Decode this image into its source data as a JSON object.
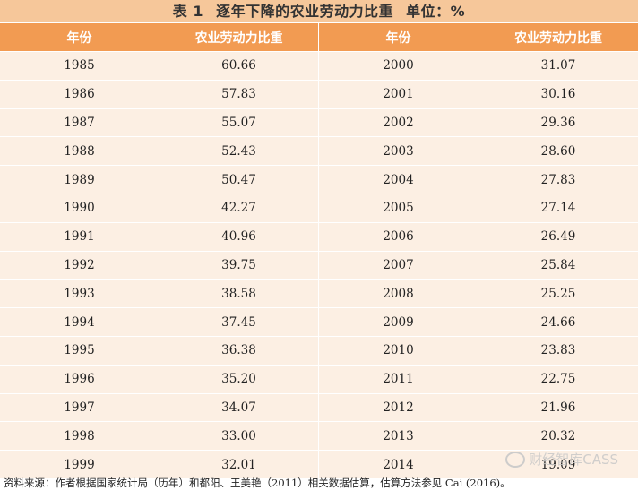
{
  "title": {
    "label": "表 1",
    "text": "逐年下降的农业劳动力比重",
    "unit": "单位：%"
  },
  "headers": [
    "年份",
    "农业劳动力比重",
    "年份",
    "农业劳动力比重"
  ],
  "rows": [
    [
      "1985",
      "60.66",
      "2000",
      "31.07"
    ],
    [
      "1986",
      "57.83",
      "2001",
      "30.16"
    ],
    [
      "1987",
      "55.07",
      "2002",
      "29.36"
    ],
    [
      "1988",
      "52.43",
      "2003",
      "28.60"
    ],
    [
      "1989",
      "50.47",
      "2004",
      "27.83"
    ],
    [
      "1990",
      "42.27",
      "2005",
      "27.14"
    ],
    [
      "1991",
      "40.96",
      "2006",
      "26.49"
    ],
    [
      "1992",
      "39.75",
      "2007",
      "25.84"
    ],
    [
      "1993",
      "38.58",
      "2008",
      "25.25"
    ],
    [
      "1994",
      "37.45",
      "2009",
      "24.66"
    ],
    [
      "1995",
      "36.38",
      "2010",
      "23.83"
    ],
    [
      "1996",
      "35.20",
      "2011",
      "22.75"
    ],
    [
      "1997",
      "34.07",
      "2012",
      "21.96"
    ],
    [
      "1998",
      "33.00",
      "2013",
      "20.32"
    ],
    [
      "1999",
      "32.01",
      "2014",
      "19.09"
    ]
  ],
  "footer": "资料来源：作者根据国家统计局（历年）和都阳、王美艳（2011）相关数据估算，估算方法参见 Cai (2016)。",
  "watermark": {
    "text": "财经智库CASS",
    "icon": "wechat-icon"
  }
}
